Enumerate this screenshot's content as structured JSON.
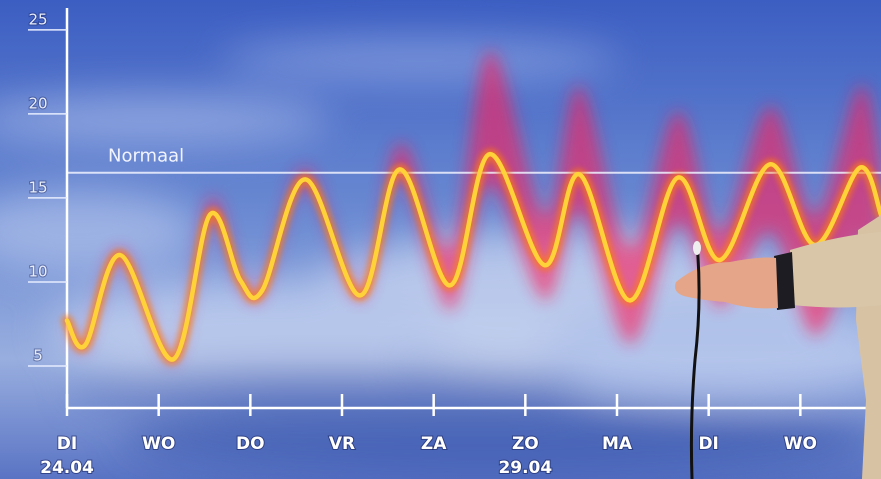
{
  "chart_data": {
    "type": "line",
    "x": [
      0,
      0.2,
      0.58,
      1.16,
      1.56,
      1.89,
      2.13,
      2.6,
      3.2,
      3.63,
      4.18,
      4.61,
      5.21,
      5.59,
      6.14,
      6.66,
      7.12,
      7.67,
      8.16,
      8.65,
      8.88
    ],
    "series": [
      {
        "color": "#ffd23a",
        "values": [
          7.7,
          6.25,
          11.6,
          5.4,
          14.0,
          10.1,
          9.5,
          16.1,
          9.2,
          16.7,
          9.8,
          17.6,
          11.0,
          16.4,
          8.9,
          16.2,
          11.3,
          17.0,
          12.2,
          16.8,
          14.0
        ]
      }
    ],
    "band": {
      "color": "#ff1e5a",
      "lower": [
        7.5,
        6.0,
        11.2,
        5.2,
        13.5,
        9.8,
        9.2,
        15.7,
        8.9,
        16.2,
        8.3,
        15.8,
        8.9,
        14.2,
        6.3,
        13.5,
        8.5,
        13.0,
        6.8,
        12.5,
        11.0
      ],
      "upper": [
        7.9,
        6.5,
        12.0,
        5.6,
        15.0,
        10.5,
        9.9,
        16.8,
        9.6,
        18.3,
        12.0,
        23.8,
        14.0,
        21.7,
        12.0,
        20.2,
        13.0,
        20.5,
        14.0,
        21.7,
        17.0
      ]
    },
    "xlim": [
      0,
      8.88
    ],
    "xticks": [
      {
        "value": 0,
        "label": "DI"
      },
      {
        "value": 1,
        "label": "WO"
      },
      {
        "value": 2,
        "label": "DO"
      },
      {
        "value": 3,
        "label": "VR"
      },
      {
        "value": 4,
        "label": "ZA"
      },
      {
        "value": 5,
        "label": "ZO"
      },
      {
        "value": 6,
        "label": "MA"
      },
      {
        "value": 7,
        "label": "DI"
      },
      {
        "value": 8,
        "label": "WO"
      }
    ],
    "date_labels": [
      {
        "x": 0,
        "text": "24.04"
      },
      {
        "x": 5,
        "text": "29.04"
      }
    ],
    "ylim": [
      2.5,
      26.3
    ],
    "yticks": [
      5,
      10,
      15,
      20,
      25
    ],
    "reference_line": {
      "value": 16.5,
      "label": "Normaal"
    }
  }
}
